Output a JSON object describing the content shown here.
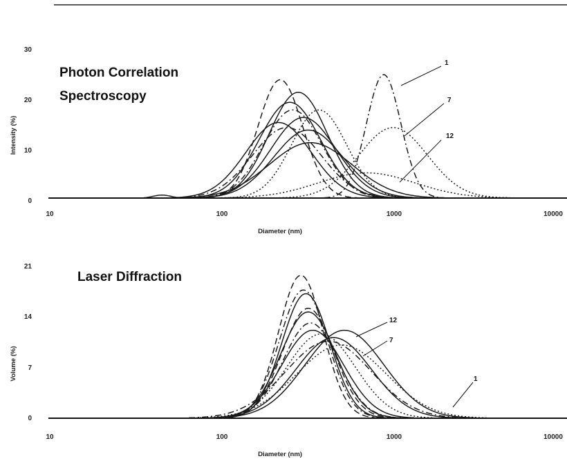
{
  "chart_data": [
    {
      "type": "line",
      "title_lines": [
        "Photon Correlation",
        "Spectroscopy"
      ],
      "xlabel": "Diameter (nm)",
      "ylabel": "Intensity (%)",
      "x_scale": "log",
      "xlim": [
        10,
        10000
      ],
      "ylim": [
        0,
        30
      ],
      "x_ticks": [
        10,
        100,
        1000,
        10000
      ],
      "x_tick_labels": [
        "10",
        "100",
        "1000",
        "10000"
      ],
      "y_ticks": [
        0,
        10,
        20,
        30
      ],
      "y_tick_labels": [
        "0",
        "10",
        "20",
        "30"
      ],
      "annotations": [
        {
          "text": "1",
          "points_to": {
            "x": 900,
            "y": 22
          }
        },
        {
          "text": "7",
          "points_to": {
            "x": 1000,
            "y": 12
          }
        },
        {
          "text": "12",
          "points_to": {
            "x": 1080,
            "y": 3
          }
        }
      ],
      "series": [
        {
          "style": "dashed",
          "peak": 220,
          "height": 23.5,
          "width": 0.13
        },
        {
          "style": "solid",
          "peak": 280,
          "height": 21.0,
          "width": 0.17
        },
        {
          "style": "solid",
          "peak": 250,
          "height": 19.0,
          "width": 0.18
        },
        {
          "style": "dashdot",
          "peak": 260,
          "height": 17.5,
          "width": 0.17
        },
        {
          "style": "solid",
          "peak": 300,
          "height": 16.0,
          "width": 0.19
        },
        {
          "style": "dotted",
          "peak": 370,
          "height": 17.5,
          "width": 0.16
        },
        {
          "style": "solid",
          "peak": 215,
          "height": 15.0,
          "width": 0.19
        },
        {
          "style": "dashdot",
          "peak": 240,
          "height": 14.0,
          "width": 0.2
        },
        {
          "style": "solid",
          "peak": 320,
          "height": 13.5,
          "width": 0.2
        },
        {
          "style": "solid",
          "peak": 330,
          "height": 11.0,
          "width": 0.24
        },
        {
          "style": "dashdot",
          "peak": 880,
          "height": 24.5,
          "width": 0.1
        },
        {
          "style": "dotted",
          "peak": 1000,
          "height": 14.0,
          "width": 0.2
        },
        {
          "style": "dotted",
          "peak": 700,
          "height": 5.0,
          "width": 0.28
        },
        {
          "style": "solid",
          "peak": 45,
          "height": 0.6,
          "width": 0.05
        }
      ]
    },
    {
      "type": "line",
      "title_lines": [
        "Laser Diffraction"
      ],
      "xlabel": "Diameter (nm)",
      "ylabel": "Volume (%)",
      "x_scale": "log",
      "xlim": [
        10,
        10000
      ],
      "ylim": [
        0,
        21
      ],
      "x_ticks": [
        10,
        100,
        1000,
        10000
      ],
      "x_tick_labels": [
        "10",
        "100",
        "1000",
        "10000"
      ],
      "y_ticks": [
        0,
        7,
        14,
        21
      ],
      "y_tick_labels": [
        "0",
        "7",
        "14",
        "21"
      ],
      "annotations": [
        {
          "text": "12",
          "points_to": {
            "x": 620,
            "y": 11
          }
        },
        {
          "text": "7",
          "points_to": {
            "x": 690,
            "y": 8.5
          }
        },
        {
          "text": "1",
          "points_to": {
            "x": 1600,
            "y": 1.5
          }
        }
      ],
      "series": [
        {
          "style": "dashed",
          "peak": 290,
          "height": 19.5,
          "width": 0.13
        },
        {
          "style": "dashdot",
          "peak": 300,
          "height": 17.5,
          "width": 0.14
        },
        {
          "style": "solid",
          "peak": 310,
          "height": 17.0,
          "width": 0.14
        },
        {
          "style": "dashed",
          "peak": 320,
          "height": 15.0,
          "width": 0.15
        },
        {
          "style": "solid",
          "peak": 320,
          "height": 14.5,
          "width": 0.16
        },
        {
          "style": "dashdot",
          "peak": 330,
          "height": 13.0,
          "width": 0.16
        },
        {
          "style": "solid",
          "peak": 340,
          "height": 12.0,
          "width": 0.18
        },
        {
          "style": "dotted",
          "peak": 380,
          "height": 11.5,
          "width": 0.2
        },
        {
          "style": "solid",
          "peak": 450,
          "height": 11.0,
          "width": 0.22
        },
        {
          "style": "solid",
          "peak": 520,
          "height": 12.0,
          "width": 0.23
        },
        {
          "style": "dotted",
          "peak": 500,
          "height": 10.0,
          "width": 0.26
        },
        {
          "style": "dashdot",
          "peak": 420,
          "height": 10.5,
          "width": 0.25
        }
      ]
    }
  ]
}
